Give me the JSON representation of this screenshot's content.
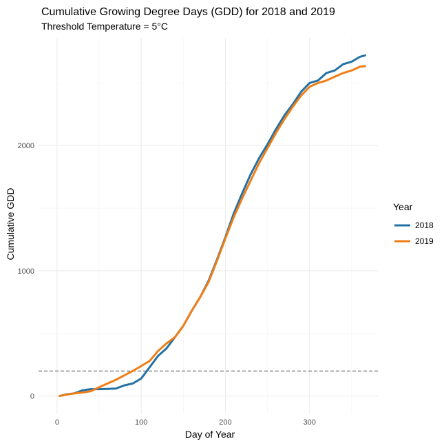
{
  "chart_data": {
    "type": "line",
    "title": "Cumulative Growing Degree Days (GDD) for 2018 and 2019",
    "subtitle": "Threshold Temperature = 5°C",
    "xlabel": "Day of Year",
    "ylabel": "Cumulative GDD",
    "xlim": [
      -22,
      382
    ],
    "ylim": [
      -140,
      2860
    ],
    "x_ticks": [
      0,
      100,
      200,
      300
    ],
    "y_ticks": [
      0,
      1000,
      2000
    ],
    "grid": true,
    "legend": {
      "title": "Year",
      "position": "right"
    },
    "reference_line": {
      "y": 200,
      "style": "dashed",
      "color": "#555555"
    },
    "series": [
      {
        "name": "2018",
        "color": "#2471a3",
        "points": [
          [
            3,
            0
          ],
          [
            10,
            12
          ],
          [
            20,
            20
          ],
          [
            30,
            45
          ],
          [
            40,
            55
          ],
          [
            50,
            55
          ],
          [
            60,
            57
          ],
          [
            70,
            60
          ],
          [
            80,
            85
          ],
          [
            90,
            100
          ],
          [
            100,
            140
          ],
          [
            110,
            230
          ],
          [
            120,
            320
          ],
          [
            130,
            380
          ],
          [
            140,
            470
          ],
          [
            150,
            560
          ],
          [
            160,
            680
          ],
          [
            170,
            790
          ],
          [
            180,
            920
          ],
          [
            190,
            1090
          ],
          [
            200,
            1270
          ],
          [
            210,
            1460
          ],
          [
            220,
            1620
          ],
          [
            230,
            1770
          ],
          [
            240,
            1900
          ],
          [
            250,
            2010
          ],
          [
            260,
            2130
          ],
          [
            270,
            2240
          ],
          [
            280,
            2330
          ],
          [
            290,
            2430
          ],
          [
            300,
            2500
          ],
          [
            310,
            2520
          ],
          [
            320,
            2580
          ],
          [
            330,
            2600
          ],
          [
            340,
            2650
          ],
          [
            350,
            2670
          ],
          [
            360,
            2710
          ],
          [
            366,
            2720
          ]
        ]
      },
      {
        "name": "2019",
        "color": "#f07e16",
        "points": [
          [
            3,
            0
          ],
          [
            10,
            10
          ],
          [
            20,
            20
          ],
          [
            30,
            28
          ],
          [
            40,
            38
          ],
          [
            50,
            70
          ],
          [
            60,
            100
          ],
          [
            70,
            130
          ],
          [
            80,
            165
          ],
          [
            90,
            200
          ],
          [
            100,
            240
          ],
          [
            110,
            280
          ],
          [
            120,
            360
          ],
          [
            130,
            420
          ],
          [
            140,
            470
          ],
          [
            150,
            560
          ],
          [
            160,
            680
          ],
          [
            170,
            790
          ],
          [
            180,
            910
          ],
          [
            190,
            1080
          ],
          [
            200,
            1260
          ],
          [
            210,
            1430
          ],
          [
            220,
            1580
          ],
          [
            230,
            1720
          ],
          [
            240,
            1860
          ],
          [
            250,
            1980
          ],
          [
            260,
            2100
          ],
          [
            270,
            2210
          ],
          [
            280,
            2310
          ],
          [
            290,
            2400
          ],
          [
            300,
            2470
          ],
          [
            310,
            2500
          ],
          [
            320,
            2520
          ],
          [
            330,
            2550
          ],
          [
            340,
            2580
          ],
          [
            350,
            2600
          ],
          [
            360,
            2630
          ],
          [
            366,
            2635
          ]
        ]
      }
    ]
  }
}
